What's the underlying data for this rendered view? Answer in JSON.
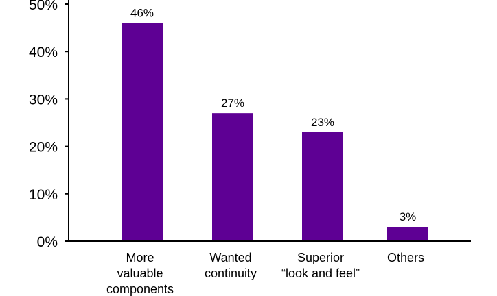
{
  "chart_data": {
    "type": "bar",
    "categories": [
      [
        "More",
        "valuable",
        "components"
      ],
      [
        "Wanted",
        "continuity"
      ],
      [
        "Superior",
        "“look and feel”"
      ],
      [
        "Others"
      ]
    ],
    "values": [
      46,
      27,
      23,
      3
    ],
    "data_labels": [
      "46%",
      "27%",
      "23%",
      "3%"
    ],
    "ylim": [
      0,
      50
    ],
    "yticks": [
      0,
      10,
      20,
      30,
      40,
      50
    ],
    "ytick_labels": [
      "0%",
      "10%",
      "20%",
      "30%",
      "40%",
      "50%"
    ],
    "bar_color": "#5e0094",
    "grid": false,
    "title": "",
    "xlabel": "",
    "ylabel": ""
  }
}
